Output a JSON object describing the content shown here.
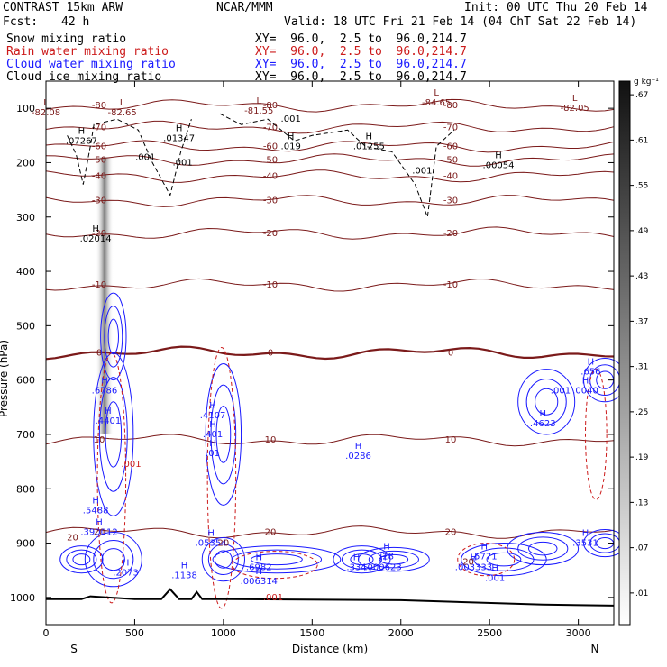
{
  "header": {
    "model": "CONTRAST 15km ARW",
    "org": "NCAR/MMM",
    "init": "Init: 00 UTC Thu 20 Feb 14",
    "fcst_label": "Fcst:",
    "fcst_value": "42 h",
    "valid": "Valid: 18 UTC Fri 21 Feb 14 (04 ChT Sat 22 Feb 14)"
  },
  "legend": [
    {
      "name": "Snow mixing ratio",
      "xy": "XY=  96.0,  2.5 to  96.0,214.7",
      "color": "#000000"
    },
    {
      "name": "Rain water mixing ratio",
      "xy": "XY=  96.0,  2.5 to  96.0,214.7",
      "color": "#cc1a1a"
    },
    {
      "name": "Cloud water mixing ratio",
      "xy": "XY=  96.0,  2.5 to  96.0,214.7",
      "color": "#1a1aff"
    },
    {
      "name": "Cloud ice mixing ratio",
      "xy": "XY=  96.0,  2.5 to  96.0,214.7",
      "color": "#000000"
    }
  ],
  "colors": {
    "temperature": "#7b1a1a",
    "freezing_level": "#7b1a1a",
    "cloud_water": "#1a1aff",
    "rain_water": "#cc1a1a",
    "snow": "#000000",
    "terrain": "#000000"
  },
  "chart_data": {
    "type": "cross-section",
    "xlabel": "Distance (km)",
    "ylabel": "Pressure (hPa)",
    "xlim": [
      0,
      3200
    ],
    "ylim": [
      1050,
      50
    ],
    "x_ticks": [
      0,
      500,
      1000,
      1500,
      2000,
      2500,
      3000
    ],
    "y_ticks": [
      100,
      200,
      300,
      400,
      500,
      600,
      700,
      800,
      900,
      1000
    ],
    "left_end_label": "S",
    "right_end_label": "N",
    "colorbar": {
      "unit": "g kg⁻¹",
      "ticks": [
        ".01",
        ".07",
        ".13",
        ".19",
        ".25",
        ".31",
        ".37",
        ".43",
        ".49",
        ".55",
        ".61",
        ".67"
      ]
    },
    "temperature_isotherms": [
      {
        "label": "-80",
        "pressure": 95
      },
      {
        "label": "-70",
        "pressure": 135
      },
      {
        "label": "-60",
        "pressure": 170
      },
      {
        "label": "-50",
        "pressure": 195
      },
      {
        "label": "-40",
        "pressure": 225
      },
      {
        "label": "-30",
        "pressure": 270
      },
      {
        "label": "-20",
        "pressure": 330
      },
      {
        "label": "-10",
        "pressure": 425
      },
      {
        "label": "0",
        "pressure": 550
      },
      {
        "label": "10",
        "pressure": 710
      },
      {
        "label": "20",
        "pressure": 880
      }
    ],
    "extrema_labels": [
      {
        "letter": "L",
        "value": "-82.08",
        "x": 0,
        "p": 108
      },
      {
        "letter": "L",
        "value": "-82.65",
        "x": 430,
        "p": 108
      },
      {
        "letter": "L",
        "value": "-81.55",
        "x": 1200,
        "p": 105
      },
      {
        "letter": "L",
        "value": "-84.65",
        "x": 2200,
        "p": 90
      },
      {
        "letter": "L",
        "value": "-82.05",
        "x": 2980,
        "p": 100
      },
      {
        "letter": "H",
        "value": ".07267",
        "x": 200,
        "p": 160
      },
      {
        "letter": "H",
        "value": ".01347",
        "x": 750,
        "p": 155
      },
      {
        "letter": "H",
        "value": ".019",
        "x": 1380,
        "p": 170
      },
      {
        "letter": "H",
        "value": ".01255",
        "x": 1820,
        "p": 170
      },
      {
        "letter": "H",
        "value": ".00054",
        "x": 2550,
        "p": 205
      },
      {
        "letter": "H",
        "value": ".02014",
        "x": 280,
        "p": 340
      },
      {
        "letter": "H",
        "value": ".6786",
        "x": 330,
        "p": 620
      },
      {
        "letter": "H",
        "value": ".4401",
        "x": 350,
        "p": 675
      },
      {
        "letter": "H",
        "value": ".5488",
        "x": 280,
        "p": 840
      },
      {
        "letter": "H",
        "value": ".390012",
        "x": 300,
        "p": 880
      },
      {
        "letter": "H",
        "value": ".2073",
        "x": 450,
        "p": 955
      },
      {
        "letter": "H",
        "value": ".1138",
        "x": 780,
        "p": 960
      },
      {
        "letter": "H",
        "value": ".4107",
        "x": 940,
        "p": 665
      },
      {
        "letter": "H",
        "value": ".401",
        "x": 940,
        "p": 700
      },
      {
        "letter": "H",
        "value": ".01",
        "x": 940,
        "p": 735
      },
      {
        "letter": "H",
        "value": ".05354",
        "x": 930,
        "p": 900
      },
      {
        "letter": "H",
        "value": ".6982",
        "x": 1200,
        "p": 945
      },
      {
        "letter": "H",
        "value": ".006314",
        "x": 1200,
        "p": 970
      },
      {
        "letter": "H",
        "value": ".0286",
        "x": 1760,
        "p": 740
      },
      {
        "letter": "H",
        "value": ".334",
        "x": 1750,
        "p": 945
      },
      {
        "letter": "H",
        "value": ".28",
        "x": 1920,
        "p": 925
      },
      {
        "letter": "H",
        "value": ".000623",
        "x": 1900,
        "p": 945
      },
      {
        "letter": "H",
        "value": ".5771",
        "x": 2470,
        "p": 925
      },
      {
        "letter": "H",
        "value": ".003333",
        "x": 2410,
        "p": 945
      },
      {
        "letter": "H",
        "value": ".001",
        "x": 2530,
        "p": 965
      },
      {
        "letter": "H",
        "value": ".4623",
        "x": 2800,
        "p": 680
      },
      {
        "letter": "H",
        "value": ".656",
        "x": 3070,
        "p": 585
      },
      {
        "letter": "H",
        "value": ".0040",
        "x": 3040,
        "p": 620
      },
      {
        "letter": "H",
        "value": ".3531",
        "x": 3040,
        "p": 900
      }
    ],
    "minor_labels": [
      {
        "text": ".001",
        "x": 560,
        "p": 195,
        "color": "#000000"
      },
      {
        "text": ".001",
        "x": 770,
        "p": 205,
        "color": "#000000"
      },
      {
        "text": ".001",
        "x": 2120,
        "p": 220,
        "color": "#000000"
      },
      {
        "text": ".001",
        "x": 1380,
        "p": 125,
        "color": "#000000"
      },
      {
        "text": ".001",
        "x": 480,
        "p": 760,
        "color": "#cc1a1a"
      },
      {
        "text": ".001",
        "x": 1280,
        "p": 1005,
        "color": "#cc1a1a"
      },
      {
        "text": ".001",
        "x": 2900,
        "p": 625,
        "color": "#1a1aff"
      },
      {
        "text": "20",
        "x": 150,
        "p": 895,
        "color": "#7b1a1a"
      },
      {
        "text": "20",
        "x": 1000,
        "p": 905,
        "color": "#7b1a1a"
      },
      {
        "text": "20",
        "x": 2380,
        "p": 940,
        "color": "#7b1a1a"
      }
    ],
    "terrain": {
      "distance": [
        0,
        200,
        250,
        500,
        650,
        700,
        750,
        820,
        850,
        880,
        1000,
        2000,
        2800,
        3200
      ],
      "pressure": [
        1003,
        1003,
        998,
        1003,
        1003,
        985,
        1003,
        1003,
        990,
        1003,
        1003,
        1005,
        1013,
        1015
      ]
    }
  }
}
